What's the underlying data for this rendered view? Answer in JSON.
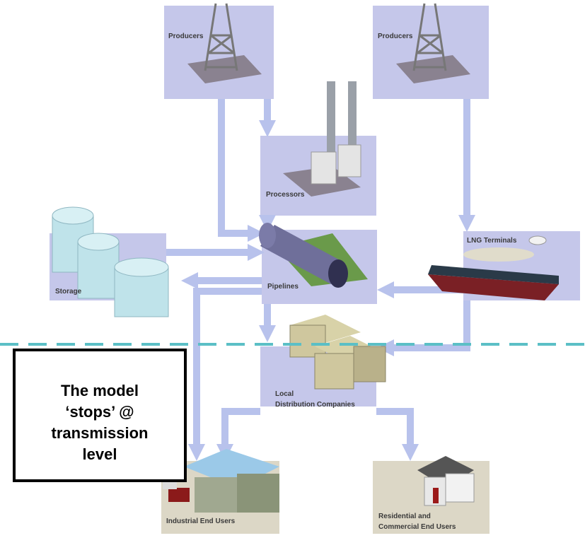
{
  "nodes": [
    {
      "label": [
        "Producers"
      ]
    },
    {
      "label": [
        "Producers"
      ]
    },
    {
      "label": [
        "Processors"
      ]
    },
    {
      "label": [
        "Storage"
      ]
    },
    {
      "label": [
        "Pipelines"
      ]
    },
    {
      "label": [
        "LNG Terminals"
      ]
    },
    {
      "label": [
        "Local",
        "Distribution Companies"
      ]
    },
    {
      "label": [
        "Industrial End Users"
      ]
    },
    {
      "label": [
        "Residential and",
        "Commercial End Users"
      ]
    }
  ],
  "callout": {
    "lines": [
      "The model",
      "‘stops’ @",
      "transmission",
      "level"
    ]
  }
}
